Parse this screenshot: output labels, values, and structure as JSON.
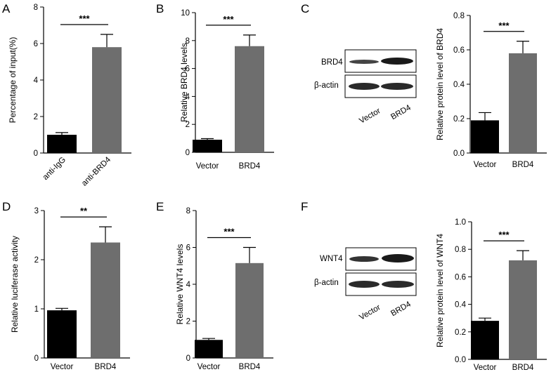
{
  "figure": {
    "panels": [
      {
        "letter": "A",
        "blot": null
      },
      {
        "letter": "B",
        "blot": null
      },
      {
        "letter": "C",
        "blot": {
          "rows": [
            "BRD4",
            "β-actin"
          ],
          "lanes": [
            "Vector",
            "BRD4"
          ]
        }
      },
      {
        "letter": "D",
        "blot": null
      },
      {
        "letter": "E",
        "blot": null
      },
      {
        "letter": "F",
        "blot": {
          "rows": [
            "WNT4",
            "β-actin"
          ],
          "lanes": [
            "Vector",
            "BRD4"
          ]
        }
      }
    ]
  },
  "chart_data": [
    {
      "type": "bar",
      "panel": "A",
      "categories": [
        "anti-IgG",
        "anti-BRD4"
      ],
      "values": [
        1.0,
        5.8
      ],
      "errors": [
        0.12,
        0.7
      ],
      "ylabel": "Percentage of input(%)",
      "ylim": [
        0,
        8
      ],
      "yticks": [
        0,
        2,
        4,
        6,
        8
      ],
      "ytick_labels": [
        "0",
        "2",
        "4",
        "6",
        "8"
      ],
      "significance": "***",
      "bar_colors": [
        "#000000",
        "#6e6e6e"
      ],
      "rotated_xlabels": true
    },
    {
      "type": "bar",
      "panel": "B",
      "categories": [
        "Vector",
        "BRD4"
      ],
      "values": [
        0.9,
        7.6
      ],
      "errors": [
        0.08,
        0.8
      ],
      "ylabel": "Relative BRD4  levels",
      "ylim": [
        0,
        10
      ],
      "yticks": [
        0,
        2,
        4,
        6,
        8,
        10
      ],
      "ytick_labels": [
        "0",
        "2",
        "4",
        "6",
        "8",
        "10"
      ],
      "significance": "***",
      "bar_colors": [
        "#000000",
        "#6e6e6e"
      ],
      "rotated_xlabels": false
    },
    {
      "type": "bar",
      "panel": "C",
      "categories": [
        "Vector",
        "BRD4"
      ],
      "values": [
        0.19,
        0.58
      ],
      "errors": [
        0.045,
        0.07
      ],
      "ylabel": "Relative protein level of BRD4",
      "ylim": [
        0,
        0.8
      ],
      "yticks": [
        0,
        0.2,
        0.4,
        0.6,
        0.8
      ],
      "ytick_labels": [
        "0.0",
        "0.2",
        "0.4",
        "0.6",
        "0.8"
      ],
      "significance": "***",
      "bar_colors": [
        "#000000",
        "#6e6e6e"
      ],
      "rotated_xlabels": false
    },
    {
      "type": "bar",
      "panel": "D",
      "categories": [
        "Vector",
        "BRD4"
      ],
      "values": [
        0.97,
        2.35
      ],
      "errors": [
        0.04,
        0.32
      ],
      "ylabel": "Relative luciferase activity",
      "ylim": [
        0,
        3
      ],
      "yticks": [
        0,
        1,
        2,
        3
      ],
      "ytick_labels": [
        "0",
        "1",
        "2",
        "3"
      ],
      "significance": "**",
      "bar_colors": [
        "#000000",
        "#6e6e6e"
      ],
      "rotated_xlabels": false
    },
    {
      "type": "bar",
      "panel": "E",
      "categories": [
        "Vector",
        "BRD4"
      ],
      "values": [
        0.98,
        5.15
      ],
      "errors": [
        0.08,
        0.85
      ],
      "ylabel": "Relative WNT4  levels",
      "ylim": [
        0,
        8
      ],
      "yticks": [
        0,
        2,
        4,
        6,
        8
      ],
      "ytick_labels": [
        "0",
        "2",
        "4",
        "6",
        "8"
      ],
      "significance": "***",
      "bar_colors": [
        "#000000",
        "#6e6e6e"
      ],
      "rotated_xlabels": false
    },
    {
      "type": "bar",
      "panel": "F",
      "categories": [
        "Vector",
        "BRD4"
      ],
      "values": [
        0.28,
        0.72
      ],
      "errors": [
        0.02,
        0.07
      ],
      "ylabel": "Relative protein level of WNT4",
      "ylim": [
        0,
        1.0
      ],
      "yticks": [
        0,
        0.2,
        0.4,
        0.6,
        0.8,
        1.0
      ],
      "ytick_labels": [
        "0.0",
        "0.2",
        "0.4",
        "0.6",
        "0.8",
        "1.0"
      ],
      "significance": "***",
      "bar_colors": [
        "#000000",
        "#6e6e6e"
      ],
      "rotated_xlabels": false
    }
  ]
}
